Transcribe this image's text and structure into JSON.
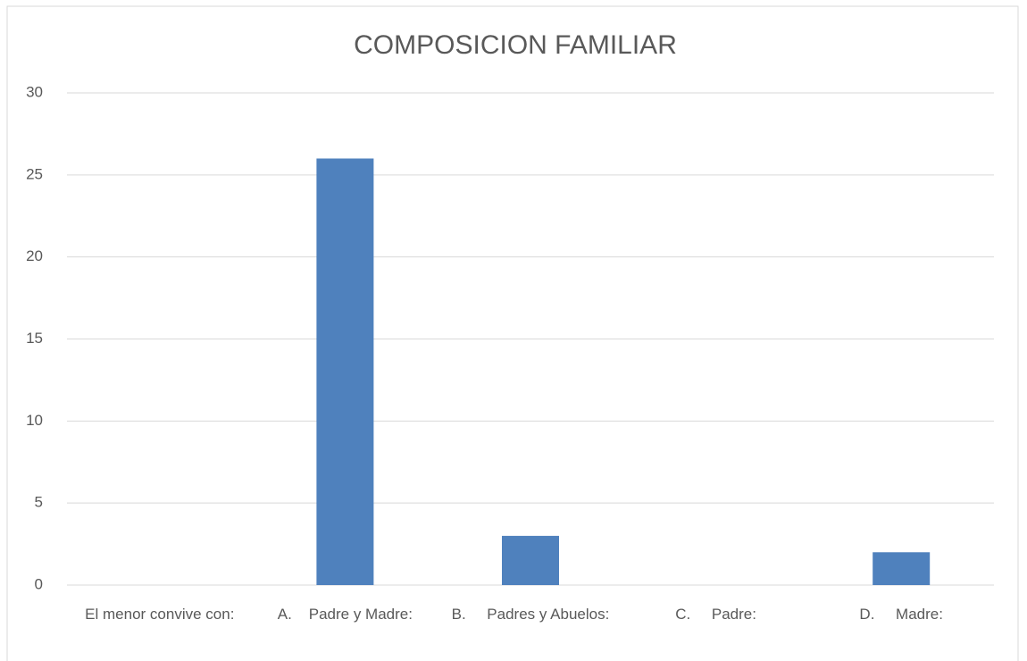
{
  "chart_data": {
    "type": "bar",
    "title": "COMPOSICION FAMILIAR",
    "categories": [
      "El menor convive con:",
      "A.    Padre y Madre:",
      "B.     Padres y Abuelos:",
      "C.     Padre:",
      "D.     Madre:"
    ],
    "values": [
      0,
      26,
      3,
      0,
      2
    ],
    "color": "#4f81bd",
    "ylim": [
      0,
      30
    ],
    "yticks": [
      0,
      5,
      10,
      15,
      20,
      25,
      30
    ],
    "grid": true
  }
}
